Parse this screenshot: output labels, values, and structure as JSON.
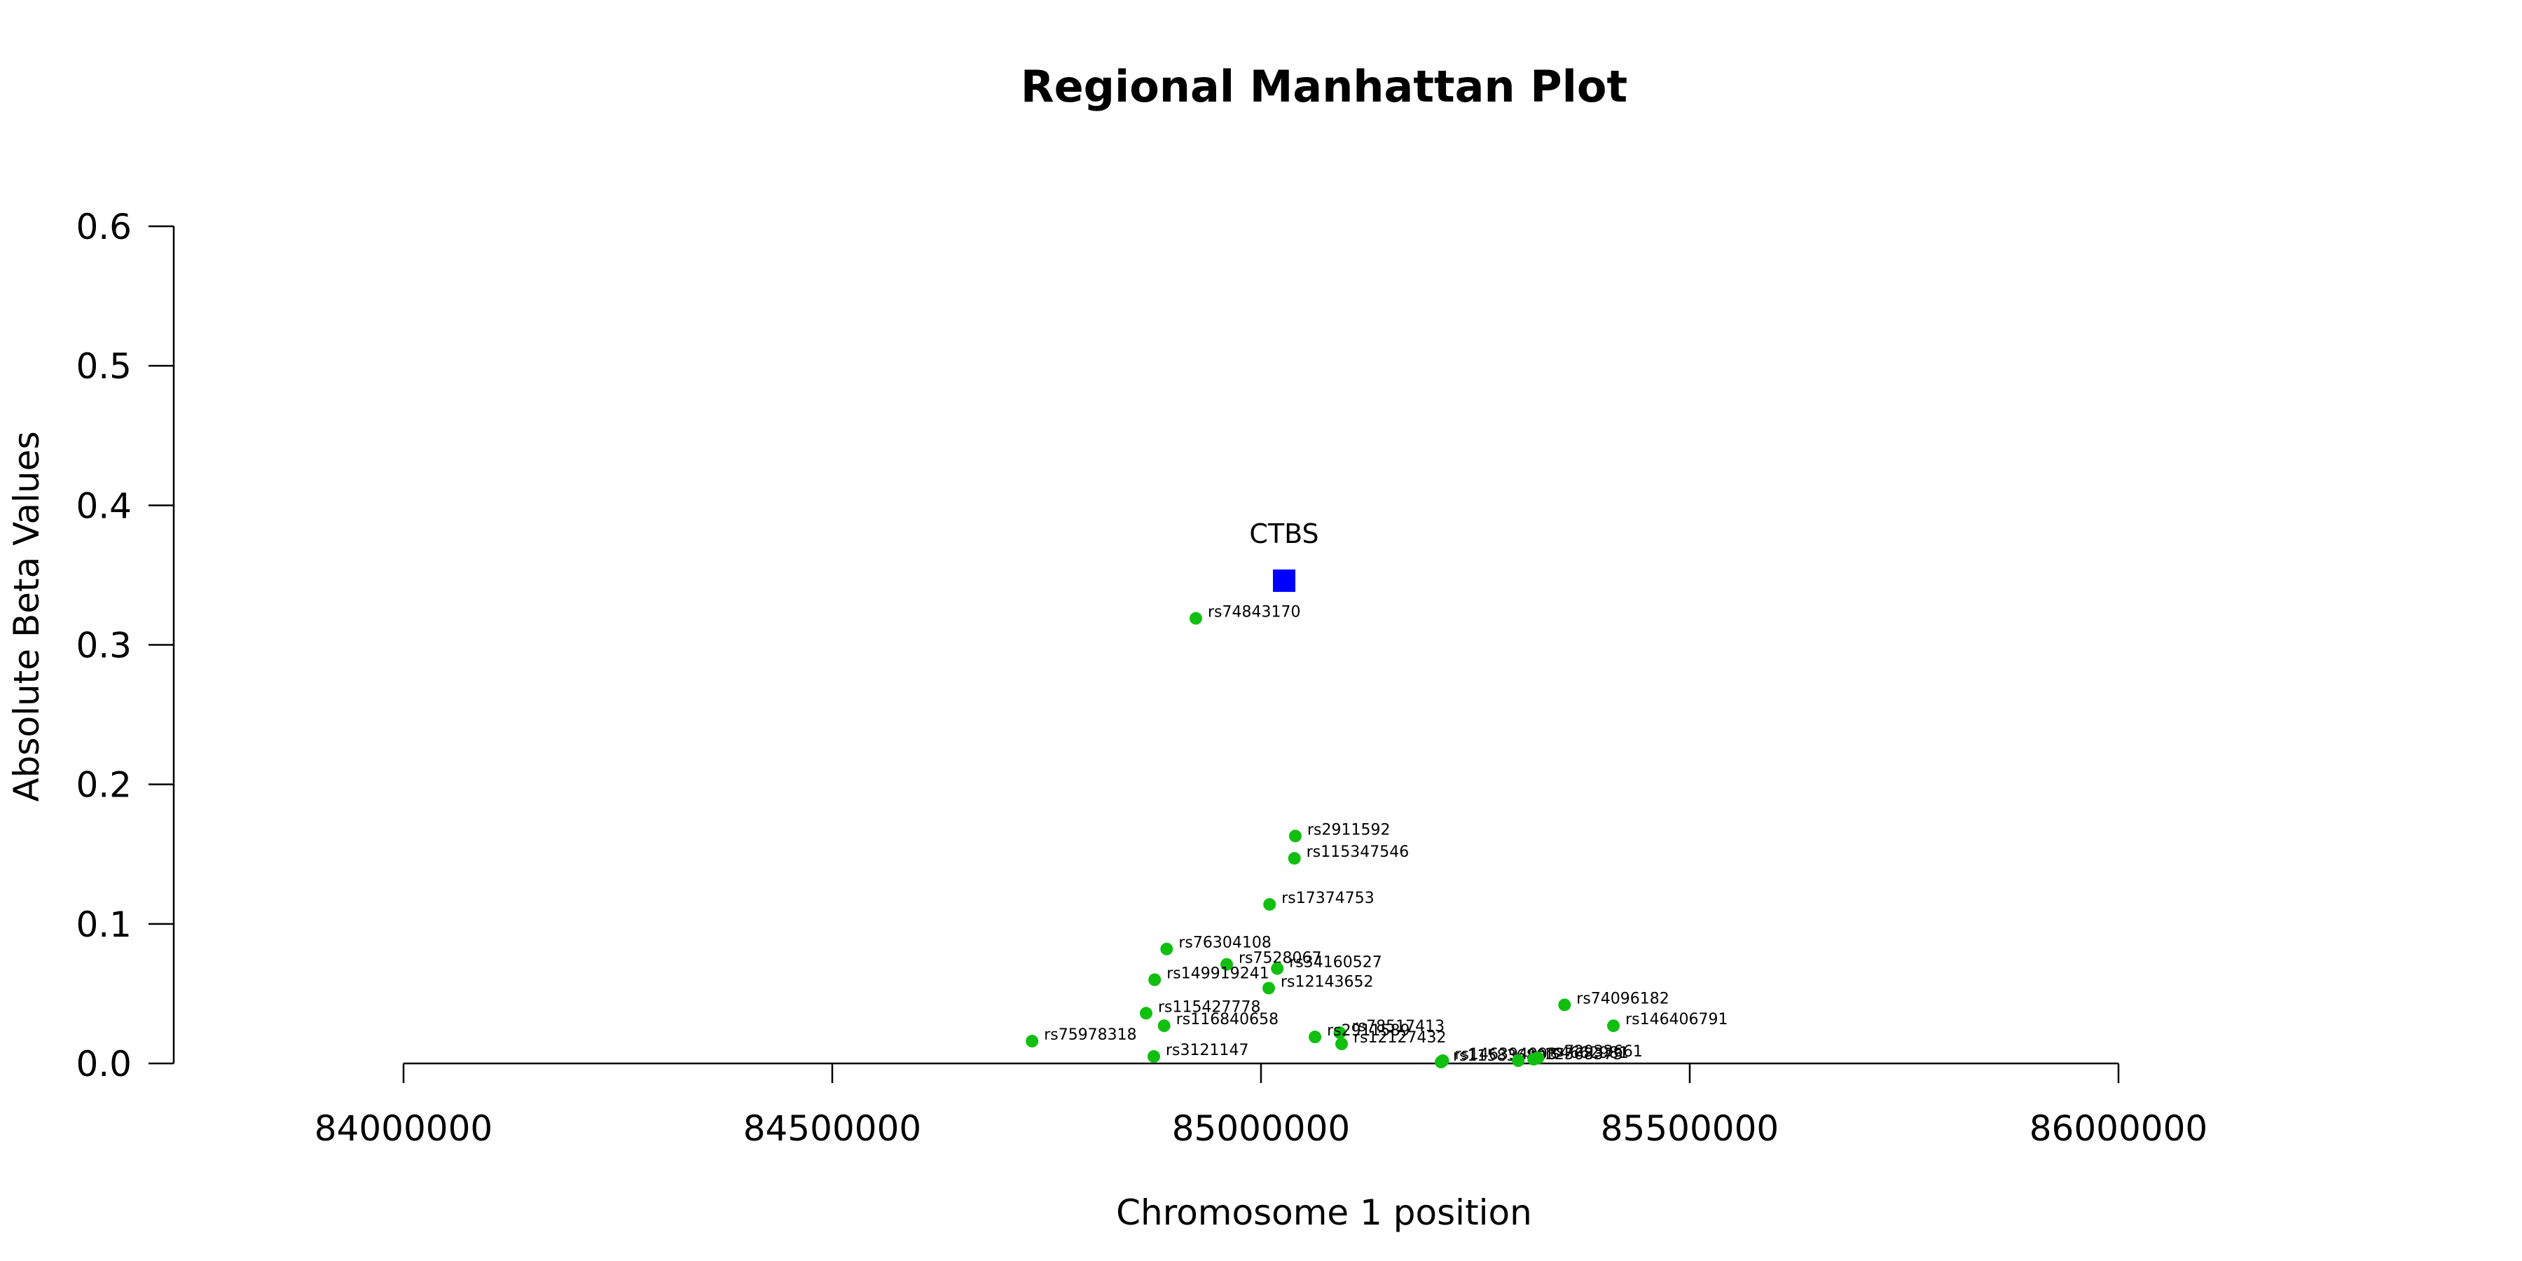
{
  "chart_data": {
    "type": "scatter",
    "title": "Regional Manhattan Plot",
    "xlabel": "Chromosome 1 position",
    "ylabel": "Absolute Beta Values",
    "xlim": [
      83800000,
      86200000
    ],
    "ylim": [
      0,
      0.6
    ],
    "xticks": [
      84000000,
      84500000,
      85000000,
      85500000,
      86000000
    ],
    "yticks": [
      0.0,
      0.1,
      0.2,
      0.3,
      0.4,
      0.5,
      0.6
    ],
    "xtick_labels": [
      "84000000",
      "84500000",
      "85000000",
      "85500000",
      "86000000"
    ],
    "ytick_labels": [
      "0.0",
      "0.1",
      "0.2",
      "0.3",
      "0.4",
      "0.5",
      "0.6"
    ],
    "grid": false,
    "gene": {
      "name": "CTBS",
      "x": 85027000,
      "y": 0.346,
      "color": "#0000ff",
      "marker": "square"
    },
    "snp_color": "#11bf11",
    "points": [
      {
        "label": "rs74843170",
        "x": 84924000,
        "y": 0.319
      },
      {
        "label": "rs2911592",
        "x": 85040000,
        "y": 0.163
      },
      {
        "label": "rs115347546",
        "x": 85039000,
        "y": 0.147
      },
      {
        "label": "rs17374753",
        "x": 85010000,
        "y": 0.114
      },
      {
        "label": "rs76304108",
        "x": 84890000,
        "y": 0.082
      },
      {
        "label": "rs7528067",
        "x": 84960000,
        "y": 0.071
      },
      {
        "label": "rs34160527",
        "x": 85019000,
        "y": 0.068
      },
      {
        "label": "rs149919241",
        "x": 84876000,
        "y": 0.06
      },
      {
        "label": "rs12143652",
        "x": 85009000,
        "y": 0.054
      },
      {
        "label": "rs74096182",
        "x": 85354000,
        "y": 0.042
      },
      {
        "label": "rs115427778",
        "x": 84866000,
        "y": 0.036
      },
      {
        "label": "rs146406791",
        "x": 85411000,
        "y": 0.027
      },
      {
        "label": "rs116840658",
        "x": 84887000,
        "y": 0.027
      },
      {
        "label": "rs78517413",
        "x": 85092000,
        "y": 0.022
      },
      {
        "label": "rs2911589",
        "x": 85063000,
        "y": 0.019
      },
      {
        "label": "rs12127432",
        "x": 85094000,
        "y": 0.014
      },
      {
        "label": "rs75978318",
        "x": 84733000,
        "y": 0.016
      },
      {
        "label": "rs3121147",
        "x": 84875000,
        "y": 0.005
      },
      {
        "label": "rs11583680",
        "x": 85210000,
        "y": 0.001
      },
      {
        "label": "rs146394093",
        "x": 85212000,
        "y": 0.002
      },
      {
        "label": "rs12568373",
        "x": 85300000,
        "y": 0.002
      },
      {
        "label": "rs4662981",
        "x": 85318000,
        "y": 0.003
      },
      {
        "label": "rs72933661",
        "x": 85323000,
        "y": 0.004
      }
    ]
  }
}
